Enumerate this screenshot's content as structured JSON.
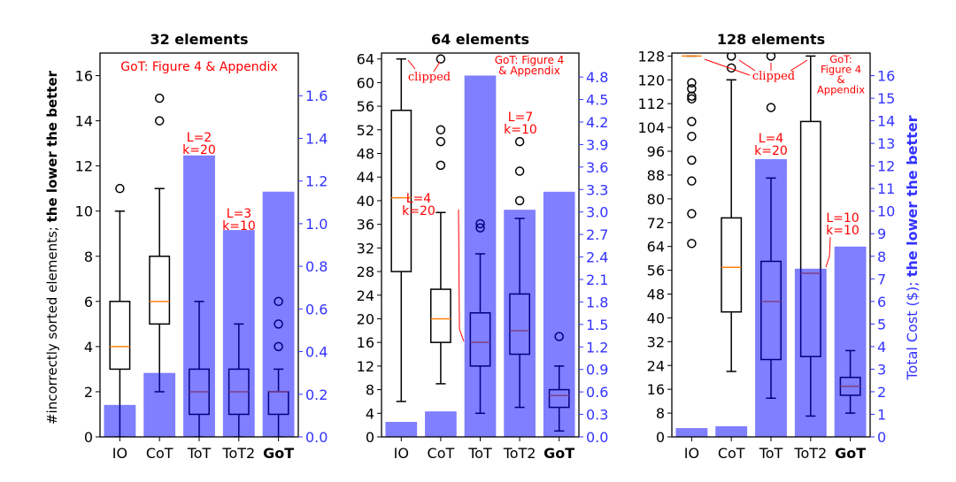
{
  "chart_data": [
    {
      "type": "box+bar",
      "title": "32 elements",
      "categories": [
        "IO",
        "CoT",
        "ToT",
        "ToT2",
        "GoT"
      ],
      "bold_category": "GoT",
      "ylabel_left_regular": "#incorrectly sorted elements; ",
      "ylabel_left_bold": "the lower the better",
      "ylim": [
        0,
        17
      ],
      "yticks": [
        0,
        2,
        4,
        6,
        8,
        10,
        12,
        14,
        16
      ],
      "ylim_cost": [
        0,
        1.8
      ],
      "yticks_cost": [
        "0.0",
        "0.2",
        "0.4",
        "0.6",
        "0.8",
        "1.0",
        "1.2",
        "1.4",
        "1.6"
      ],
      "cost": [
        0.15,
        0.3,
        1.32,
        0.97,
        1.15
      ],
      "boxes": [
        {
          "whislo": 0,
          "q1": 3,
          "med": 4,
          "q3": 6,
          "whishi": 10,
          "fliers": [
            11
          ]
        },
        {
          "whislo": 2,
          "q1": 5,
          "med": 6,
          "q3": 8,
          "whishi": 11,
          "fliers": [
            14,
            15
          ]
        },
        {
          "whislo": 0,
          "q1": 1,
          "med": 2,
          "q3": 3,
          "whishi": 6,
          "fliers": []
        },
        {
          "whislo": 0,
          "q1": 1,
          "med": 2,
          "q3": 3,
          "whishi": 5,
          "fliers": []
        },
        {
          "whislo": 0,
          "q1": 1,
          "med": 2,
          "q3": 2,
          "whishi": 3,
          "fliers": [
            4,
            5,
            6
          ]
        }
      ],
      "annotations": [
        {
          "lines": [
            "GoT: Figure 4 & Appendix"
          ],
          "anchor": "top"
        },
        {
          "lines": [
            "L=2",
            "k=20"
          ],
          "category": "ToT"
        },
        {
          "lines": [
            "L=3",
            "k=10"
          ],
          "category": "ToT2"
        }
      ]
    },
    {
      "type": "box+bar",
      "title": "64 elements",
      "categories": [
        "IO",
        "CoT",
        "ToT",
        "ToT2",
        "GoT"
      ],
      "bold_category": "GoT",
      "ylim": [
        0,
        65
      ],
      "yticks": [
        0,
        4,
        8,
        12,
        16,
        20,
        24,
        28,
        32,
        36,
        40,
        44,
        48,
        52,
        56,
        60,
        64
      ],
      "ylim_cost": [
        0,
        5.12
      ],
      "yticks_cost": [
        "0.0",
        "0.3",
        "0.6",
        "0.9",
        "1.2",
        "1.5",
        "1.8",
        "2.1",
        "2.4",
        "2.7",
        "3.0",
        "3.3",
        "3.6",
        "3.9",
        "4.2",
        "4.5",
        "4.8"
      ],
      "cost": [
        0.2,
        0.34,
        4.82,
        3.03,
        3.27
      ],
      "boxes": [
        {
          "whislo": 6,
          "q1": 28,
          "med": 40.5,
          "q3": 55.3,
          "whishi": 64,
          "fliers": []
        },
        {
          "whislo": 9,
          "q1": 16,
          "med": 20,
          "q3": 25,
          "whishi": 38,
          "fliers": [
            46,
            50,
            52,
            64
          ]
        },
        {
          "whislo": 4,
          "q1": 12,
          "med": 16,
          "q3": 21,
          "whishi": 31,
          "fliers": [
            35.4,
            36.1
          ]
        },
        {
          "whislo": 5,
          "q1": 14,
          "med": 18,
          "q3": 24.2,
          "whishi": 37,
          "fliers": [
            40,
            45,
            50
          ]
        },
        {
          "whislo": 1,
          "q1": 5,
          "med": 7,
          "q3": 8,
          "whishi": 12,
          "fliers": [
            17
          ]
        }
      ],
      "annotations": [
        {
          "lines": [
            "GoT: Figure 4",
            "& Appendix"
          ],
          "anchor": "top-right"
        },
        {
          "lines": [
            "clipped"
          ],
          "anchor": "top-left"
        },
        {
          "lines": [
            "L=4",
            "k=20"
          ],
          "category": "ToT"
        },
        {
          "lines": [
            "L=7",
            "k=10"
          ],
          "category": "ToT2"
        }
      ]
    },
    {
      "type": "box+bar",
      "title": "128 elements",
      "categories": [
        "IO",
        "CoT",
        "ToT",
        "ToT2",
        "GoT"
      ],
      "bold_category": "GoT",
      "ylim": [
        0,
        129
      ],
      "yticks": [
        0,
        8,
        16,
        24,
        32,
        40,
        48,
        56,
        64,
        72,
        80,
        88,
        96,
        104,
        112,
        120,
        128
      ],
      "ylim_cost": [
        0,
        17
      ],
      "yticks_cost": [
        "0",
        "1",
        "2",
        "3",
        "4",
        "5",
        "6",
        "7",
        "8",
        "9",
        "10",
        "11",
        "12",
        "13",
        "14",
        "15",
        "16"
      ],
      "ylabel_right_regular": "Total Cost ($); ",
      "ylabel_right_bold": "the lower the better",
      "cost": [
        0.39,
        0.47,
        12.3,
        7.45,
        8.43
      ],
      "boxes": [
        {
          "whislo": 128,
          "q1": 128,
          "med": 128,
          "q3": 128,
          "whishi": 128,
          "fliers": [
            65,
            75,
            86,
            93,
            101,
            106,
            113.6,
            114.5,
            117,
            119
          ]
        },
        {
          "whislo": 22,
          "q1": 42,
          "med": 57,
          "q3": 73.6,
          "whishi": 120,
          "fliers": [
            124,
            128
          ]
        },
        {
          "whislo": 13,
          "q1": 26,
          "med": 45.5,
          "q3": 59,
          "whishi": 87,
          "fliers": [
            110.7,
            128
          ]
        },
        {
          "whislo": 7,
          "q1": 27,
          "med": 55,
          "q3": 106,
          "whishi": 128,
          "fliers": []
        },
        {
          "whislo": 8,
          "q1": 14,
          "med": 17,
          "q3": 20,
          "whishi": 29,
          "fliers": []
        }
      ],
      "annotations": [
        {
          "lines": [
            "GoT:",
            "Figure 4",
            "&",
            "Appendix"
          ],
          "anchor": "top-right"
        },
        {
          "lines": [
            "clipped"
          ],
          "anchor": "top"
        },
        {
          "lines": [
            "L=4",
            "k=20"
          ],
          "category": "ToT"
        },
        {
          "lines": [
            "L=10",
            "k=10"
          ],
          "category": "ToT2"
        }
      ]
    }
  ],
  "colors": {
    "cost_bar": "#8080ff",
    "cost_axis": "#3333ff",
    "median": "#ff7f0e",
    "annotation": "#ff0000",
    "box": "#000000"
  }
}
